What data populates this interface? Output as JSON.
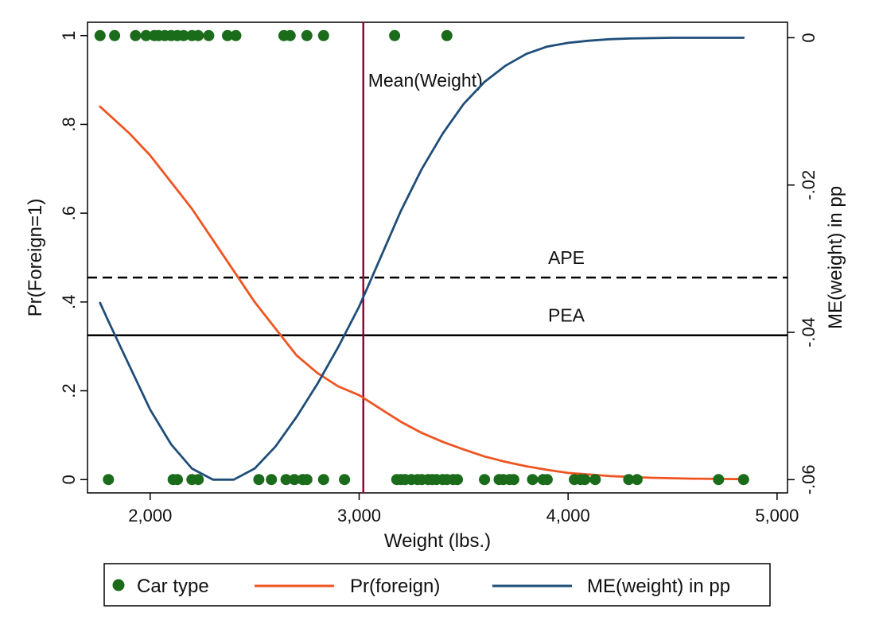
{
  "chart_data": {
    "type": "line",
    "xlabel": "Weight (lbs.)",
    "ylabel_left": "Pr(Foreign=1)",
    "ylabel_right": "ME(weight) in pp",
    "xlim": [
      1700,
      5050
    ],
    "xticks": [
      2000,
      3000,
      4000,
      5000
    ],
    "xtick_labels": [
      "2,000",
      "3,000",
      "4,000",
      "5,000"
    ],
    "ylim_left": [
      -0.03,
      1.03
    ],
    "yticks_left": [
      0,
      0.2,
      0.4,
      0.6,
      0.8,
      1
    ],
    "ytick_labels_left": [
      "0",
      ".2",
      ".4",
      ".6",
      ".8",
      "1"
    ],
    "ylim_right": [
      -0.0618,
      0.0021
    ],
    "yticks_right": [
      0,
      -0.02,
      -0.04,
      -0.06
    ],
    "ytick_labels_right": [
      "0",
      "-.02",
      "-.04",
      "-.06"
    ],
    "grid": false,
    "legend_position": "bottom",
    "colors": {
      "car_type": "#1a6b1a",
      "pr_foreign": "#ee5522",
      "me_weight": "#1f4e79",
      "mean_line": "#990033",
      "ref_lines": "#000000"
    },
    "series": [
      {
        "name": "Car type",
        "type": "scatter",
        "axis": "left",
        "points": [
          {
            "x": 1760,
            "y": 1
          },
          {
            "x": 1830,
            "y": 1
          },
          {
            "x": 1930,
            "y": 1
          },
          {
            "x": 1980,
            "y": 1
          },
          {
            "x": 2020,
            "y": 1
          },
          {
            "x": 2040,
            "y": 1
          },
          {
            "x": 2070,
            "y": 1
          },
          {
            "x": 2100,
            "y": 1
          },
          {
            "x": 2130,
            "y": 1
          },
          {
            "x": 2160,
            "y": 1
          },
          {
            "x": 2200,
            "y": 1
          },
          {
            "x": 2230,
            "y": 1
          },
          {
            "x": 2280,
            "y": 1
          },
          {
            "x": 2370,
            "y": 1
          },
          {
            "x": 2410,
            "y": 1
          },
          {
            "x": 2640,
            "y": 1
          },
          {
            "x": 2670,
            "y": 1
          },
          {
            "x": 2750,
            "y": 1
          },
          {
            "x": 2830,
            "y": 1
          },
          {
            "x": 3170,
            "y": 1
          },
          {
            "x": 3420,
            "y": 1
          },
          {
            "x": 1800,
            "y": 0
          },
          {
            "x": 2110,
            "y": 0
          },
          {
            "x": 2130,
            "y": 0
          },
          {
            "x": 2200,
            "y": 0
          },
          {
            "x": 2230,
            "y": 0
          },
          {
            "x": 2520,
            "y": 0
          },
          {
            "x": 2580,
            "y": 0
          },
          {
            "x": 2650,
            "y": 0
          },
          {
            "x": 2690,
            "y": 0
          },
          {
            "x": 2730,
            "y": 0
          },
          {
            "x": 2750,
            "y": 0
          },
          {
            "x": 2830,
            "y": 0
          },
          {
            "x": 2930,
            "y": 0
          },
          {
            "x": 3180,
            "y": 0
          },
          {
            "x": 3200,
            "y": 0
          },
          {
            "x": 3220,
            "y": 0
          },
          {
            "x": 3250,
            "y": 0
          },
          {
            "x": 3280,
            "y": 0
          },
          {
            "x": 3300,
            "y": 0
          },
          {
            "x": 3330,
            "y": 0
          },
          {
            "x": 3350,
            "y": 0
          },
          {
            "x": 3370,
            "y": 0
          },
          {
            "x": 3400,
            "y": 0
          },
          {
            "x": 3420,
            "y": 0
          },
          {
            "x": 3450,
            "y": 0
          },
          {
            "x": 3470,
            "y": 0
          },
          {
            "x": 3600,
            "y": 0
          },
          {
            "x": 3670,
            "y": 0
          },
          {
            "x": 3690,
            "y": 0
          },
          {
            "x": 3720,
            "y": 0
          },
          {
            "x": 3740,
            "y": 0
          },
          {
            "x": 3830,
            "y": 0
          },
          {
            "x": 3880,
            "y": 0
          },
          {
            "x": 3900,
            "y": 0
          },
          {
            "x": 4030,
            "y": 0
          },
          {
            "x": 4060,
            "y": 0
          },
          {
            "x": 4080,
            "y": 0
          },
          {
            "x": 4130,
            "y": 0
          },
          {
            "x": 4290,
            "y": 0
          },
          {
            "x": 4330,
            "y": 0
          },
          {
            "x": 4720,
            "y": 0
          },
          {
            "x": 4840,
            "y": 0
          }
        ]
      },
      {
        "name": "Pr(foreign)",
        "type": "line",
        "axis": "left",
        "x": [
          1760,
          1900,
          2000,
          2100,
          2200,
          2300,
          2400,
          2500,
          2600,
          2700,
          2800,
          2900,
          3000,
          3100,
          3200,
          3300,
          3400,
          3500,
          3600,
          3700,
          3800,
          3900,
          4000,
          4200,
          4400,
          4600,
          4840
        ],
        "y": [
          0.84,
          0.78,
          0.73,
          0.67,
          0.61,
          0.54,
          0.47,
          0.4,
          0.34,
          0.28,
          0.24,
          0.21,
          0.19,
          0.16,
          0.13,
          0.105,
          0.085,
          0.068,
          0.052,
          0.04,
          0.03,
          0.022,
          0.015,
          0.008,
          0.004,
          0.002,
          0.001
        ]
      },
      {
        "name": "ME(weight) in pp",
        "type": "line",
        "axis": "right",
        "x": [
          1760,
          1800,
          1900,
          2000,
          2100,
          2200,
          2300,
          2400,
          2500,
          2600,
          2700,
          2800,
          2900,
          3000,
          3100,
          3200,
          3300,
          3400,
          3500,
          3600,
          3700,
          3800,
          3900,
          4000,
          4100,
          4200,
          4300,
          4500,
          4840
        ],
        "y": [
          -0.036,
          -0.0385,
          -0.0445,
          -0.0505,
          -0.0552,
          -0.0585,
          -0.06,
          -0.06,
          -0.0585,
          -0.0555,
          -0.0515,
          -0.047,
          -0.042,
          -0.0365,
          -0.03,
          -0.0235,
          -0.0178,
          -0.013,
          -0.009,
          -0.006,
          -0.0038,
          -0.0022,
          -0.0012,
          -0.0007,
          -0.0004,
          -0.0002,
          -0.0001,
          0.0,
          0.0
        ]
      }
    ],
    "reference_lines": {
      "vertical": {
        "label": "Mean(Weight)",
        "x": 3020
      },
      "horizontal": [
        {
          "label": "APE",
          "y": 0.455,
          "axis": "left",
          "style": "dashed"
        },
        {
          "label": "PEA",
          "y": 0.325,
          "axis": "left",
          "style": "solid"
        }
      ]
    },
    "legend": {
      "items": [
        {
          "label": "Car type",
          "symbol": "dot"
        },
        {
          "label": "Pr(foreign)",
          "symbol": "line"
        },
        {
          "label": "ME(weight) in pp",
          "symbol": "line"
        }
      ]
    }
  }
}
